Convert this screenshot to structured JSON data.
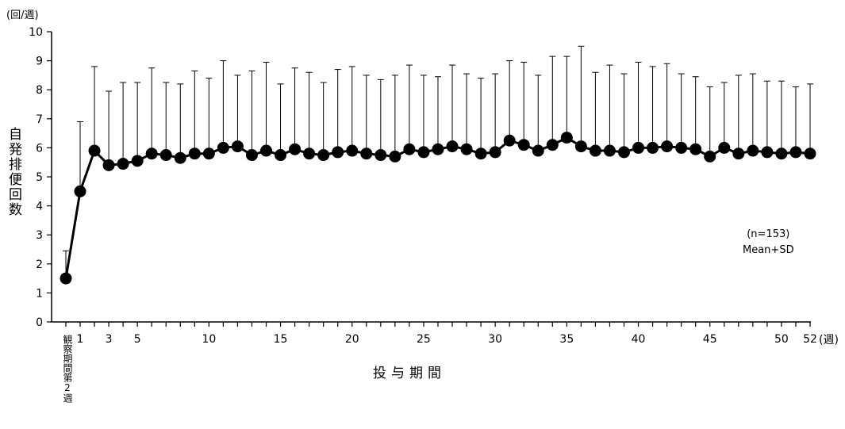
{
  "chart_data": {
    "type": "line",
    "title": "",
    "ylabel": "自発排便回数",
    "yunit": "(回/週)",
    "xlabel": "投与期間",
    "xunit": "(週)",
    "note_n": "(n=153)",
    "note_stat": "Mean+SD",
    "baseline_label": "観察期間第2週",
    "ylim": [
      0,
      10
    ],
    "yticks": [
      0,
      1,
      2,
      3,
      4,
      5,
      6,
      7,
      8,
      9,
      10
    ],
    "xticks": [
      1,
      3,
      5,
      10,
      15,
      20,
      25,
      30,
      35,
      40,
      45,
      50,
      52
    ],
    "xlim": [
      -1,
      52
    ],
    "series": [
      {
        "name": "",
        "x": [
          -1,
          1,
          2,
          3,
          4,
          5,
          6,
          7,
          8,
          9,
          10,
          11,
          12,
          13,
          14,
          15,
          16,
          17,
          18,
          19,
          20,
          21,
          22,
          23,
          24,
          25,
          26,
          27,
          28,
          29,
          30,
          31,
          32,
          33,
          34,
          35,
          36,
          37,
          38,
          39,
          40,
          41,
          42,
          43,
          44,
          45,
          46,
          47,
          48,
          49,
          50,
          51,
          52
        ],
        "mean": [
          1.5,
          4.5,
          5.9,
          5.4,
          5.45,
          5.55,
          5.8,
          5.75,
          5.65,
          5.8,
          5.8,
          6.0,
          6.05,
          5.75,
          5.9,
          5.75,
          5.95,
          5.8,
          5.75,
          5.85,
          5.9,
          5.8,
          5.75,
          5.7,
          5.95,
          5.85,
          5.95,
          6.05,
          5.95,
          5.8,
          5.85,
          6.25,
          6.1,
          5.9,
          6.1,
          6.35,
          6.05,
          5.9,
          5.9,
          5.85,
          6.0,
          6.0,
          6.05,
          6.0,
          5.95,
          5.7,
          6.0,
          5.8,
          5.9,
          5.85,
          5.8,
          5.85,
          5.8
        ],
        "upper": [
          2.45,
          6.9,
          8.8,
          7.95,
          8.25,
          8.25,
          8.75,
          8.25,
          8.2,
          8.65,
          8.4,
          9.0,
          8.5,
          8.65,
          8.95,
          8.2,
          8.75,
          8.6,
          8.25,
          8.7,
          8.8,
          8.5,
          8.35,
          8.5,
          8.85,
          8.5,
          8.45,
          8.85,
          8.55,
          8.4,
          8.55,
          9.0,
          8.95,
          8.5,
          9.15,
          9.15,
          9.5,
          8.6,
          8.85,
          8.55,
          8.95,
          8.8,
          8.9,
          8.55,
          8.45,
          8.1,
          8.25,
          8.5,
          8.55,
          8.3,
          8.3,
          8.1,
          8.2
        ]
      }
    ],
    "colors": {
      "line": "#000000",
      "marker": "#000000",
      "axis": "#000000"
    }
  }
}
